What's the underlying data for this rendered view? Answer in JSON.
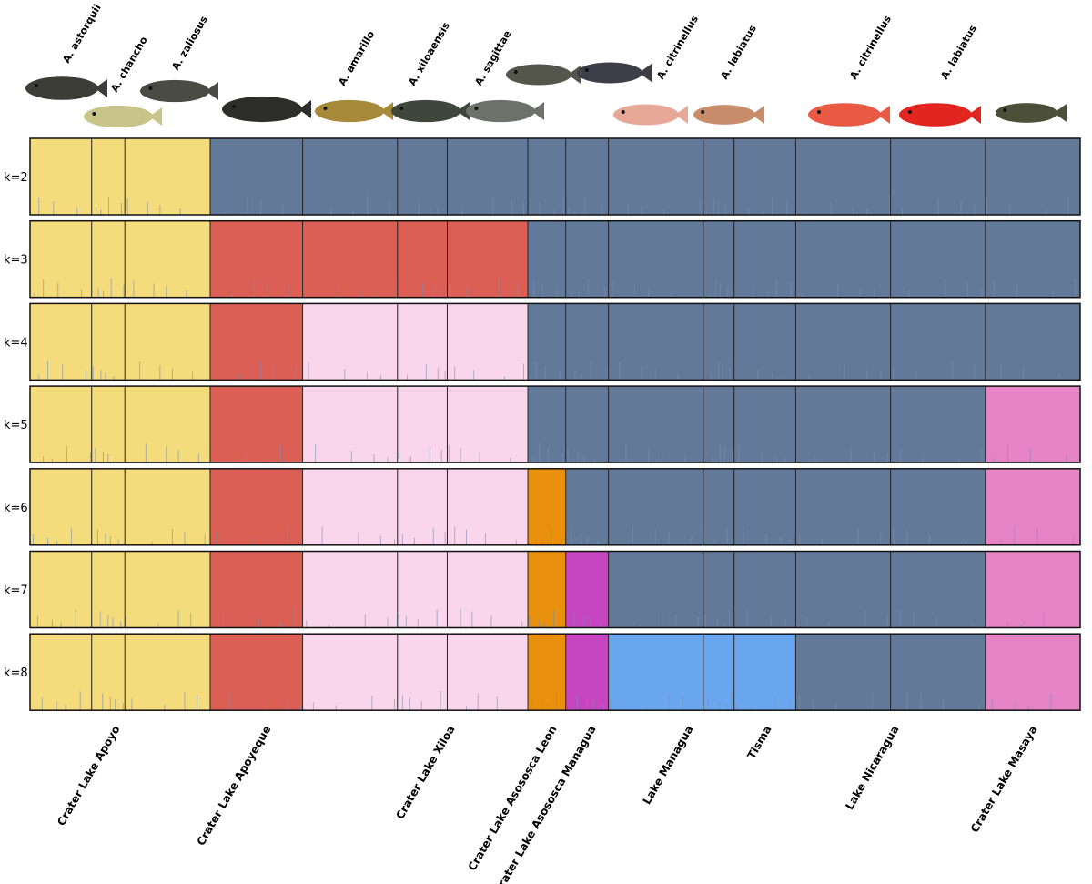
{
  "chart_data": {
    "type": "structure",
    "species": [
      "A. astorquii",
      "A. chancho",
      "A. zaliosus",
      "A. amarillo",
      "A. xiloaensis",
      "A. sagittae",
      "A. citrinellus",
      "A. labiatus",
      "A. citrinellus",
      "A. labiatus"
    ],
    "lakes": [
      {
        "name": "Crater Lake Apoyo",
        "n": [
          26,
          14,
          36
        ]
      },
      {
        "name": "Crater Lake Apoyeque",
        "n": [
          39
        ]
      },
      {
        "name": "Crater Lake Xiloa",
        "n": [
          40,
          21,
          34
        ]
      },
      {
        "name": "Crater Lake Asososca Leon",
        "n": [
          16
        ]
      },
      {
        "name": "Crater Lake Asososca Managua",
        "n": [
          18
        ]
      },
      {
        "name": "Lake Managua",
        "n": [
          40,
          13
        ]
      },
      {
        "name": "Tisma",
        "n": [
          26
        ]
      },
      {
        "name": "Lake Nicaragua",
        "n": [
          40,
          40
        ]
      },
      {
        "name": "Crater Lake Masaya",
        "n": [
          40
        ]
      }
    ],
    "rows": [
      {
        "label": "k=2",
        "colors": [
          "#f4db7c",
          "#f4db7c",
          "#f4db7c",
          "#62799a",
          "#62799a",
          "#62799a",
          "#62799a",
          "#62799a",
          "#62799a",
          "#62799a",
          "#62799a",
          "#62799a",
          "#62799a",
          "#62799a",
          "#62799a"
        ]
      },
      {
        "label": "k=3",
        "colors": [
          "#f4db7c",
          "#f4db7c",
          "#f4db7c",
          "#dc5f55",
          "#dc5f55",
          "#dc5f55",
          "#dc5f55",
          "#62799a",
          "#62799a",
          "#62799a",
          "#62799a",
          "#62799a",
          "#62799a",
          "#62799a",
          "#62799a"
        ]
      },
      {
        "label": "k=4",
        "colors": [
          "#f4db7c",
          "#f4db7c",
          "#f4db7c",
          "#dc5f55",
          "#f9d6ec",
          "#f9d6ec",
          "#f9d6ec",
          "#62799a",
          "#62799a",
          "#62799a",
          "#62799a",
          "#62799a",
          "#62799a",
          "#62799a",
          "#62799a"
        ]
      },
      {
        "label": "k=5",
        "colors": [
          "#f4db7c",
          "#f4db7c",
          "#f4db7c",
          "#dc5f55",
          "#f9d6ec",
          "#f9d6ec",
          "#f9d6ec",
          "#62799a",
          "#62799a",
          "#62799a",
          "#62799a",
          "#62799a",
          "#62799a",
          "#62799a",
          "#e583c5"
        ]
      },
      {
        "label": "k=6",
        "colors": [
          "#f4db7c",
          "#f4db7c",
          "#f4db7c",
          "#dc5f55",
          "#f9d6ec",
          "#f9d6ec",
          "#f9d6ec",
          "#e8900c",
          "#62799a",
          "#62799a",
          "#62799a",
          "#62799a",
          "#62799a",
          "#62799a",
          "#e583c5"
        ]
      },
      {
        "label": "k=7",
        "colors": [
          "#f4db7c",
          "#f4db7c",
          "#f4db7c",
          "#dc5f55",
          "#f9d6ec",
          "#f9d6ec",
          "#f9d6ec",
          "#e8900c",
          "#c745c0",
          "#62799a",
          "#62799a",
          "#62799a",
          "#62799a",
          "#62799a",
          "#e583c5"
        ]
      },
      {
        "label": "k=8",
        "colors": [
          "#f4db7c",
          "#f4db7c",
          "#f4db7c",
          "#dc5f55",
          "#f9d6ec",
          "#f9d6ec",
          "#f9d6ec",
          "#e8900c",
          "#c745c0",
          "#6aa6ee",
          "#6aa6ee",
          "#6aa6ee",
          "#62799a",
          "#62799a",
          "#e583c5"
        ]
      }
    ]
  }
}
